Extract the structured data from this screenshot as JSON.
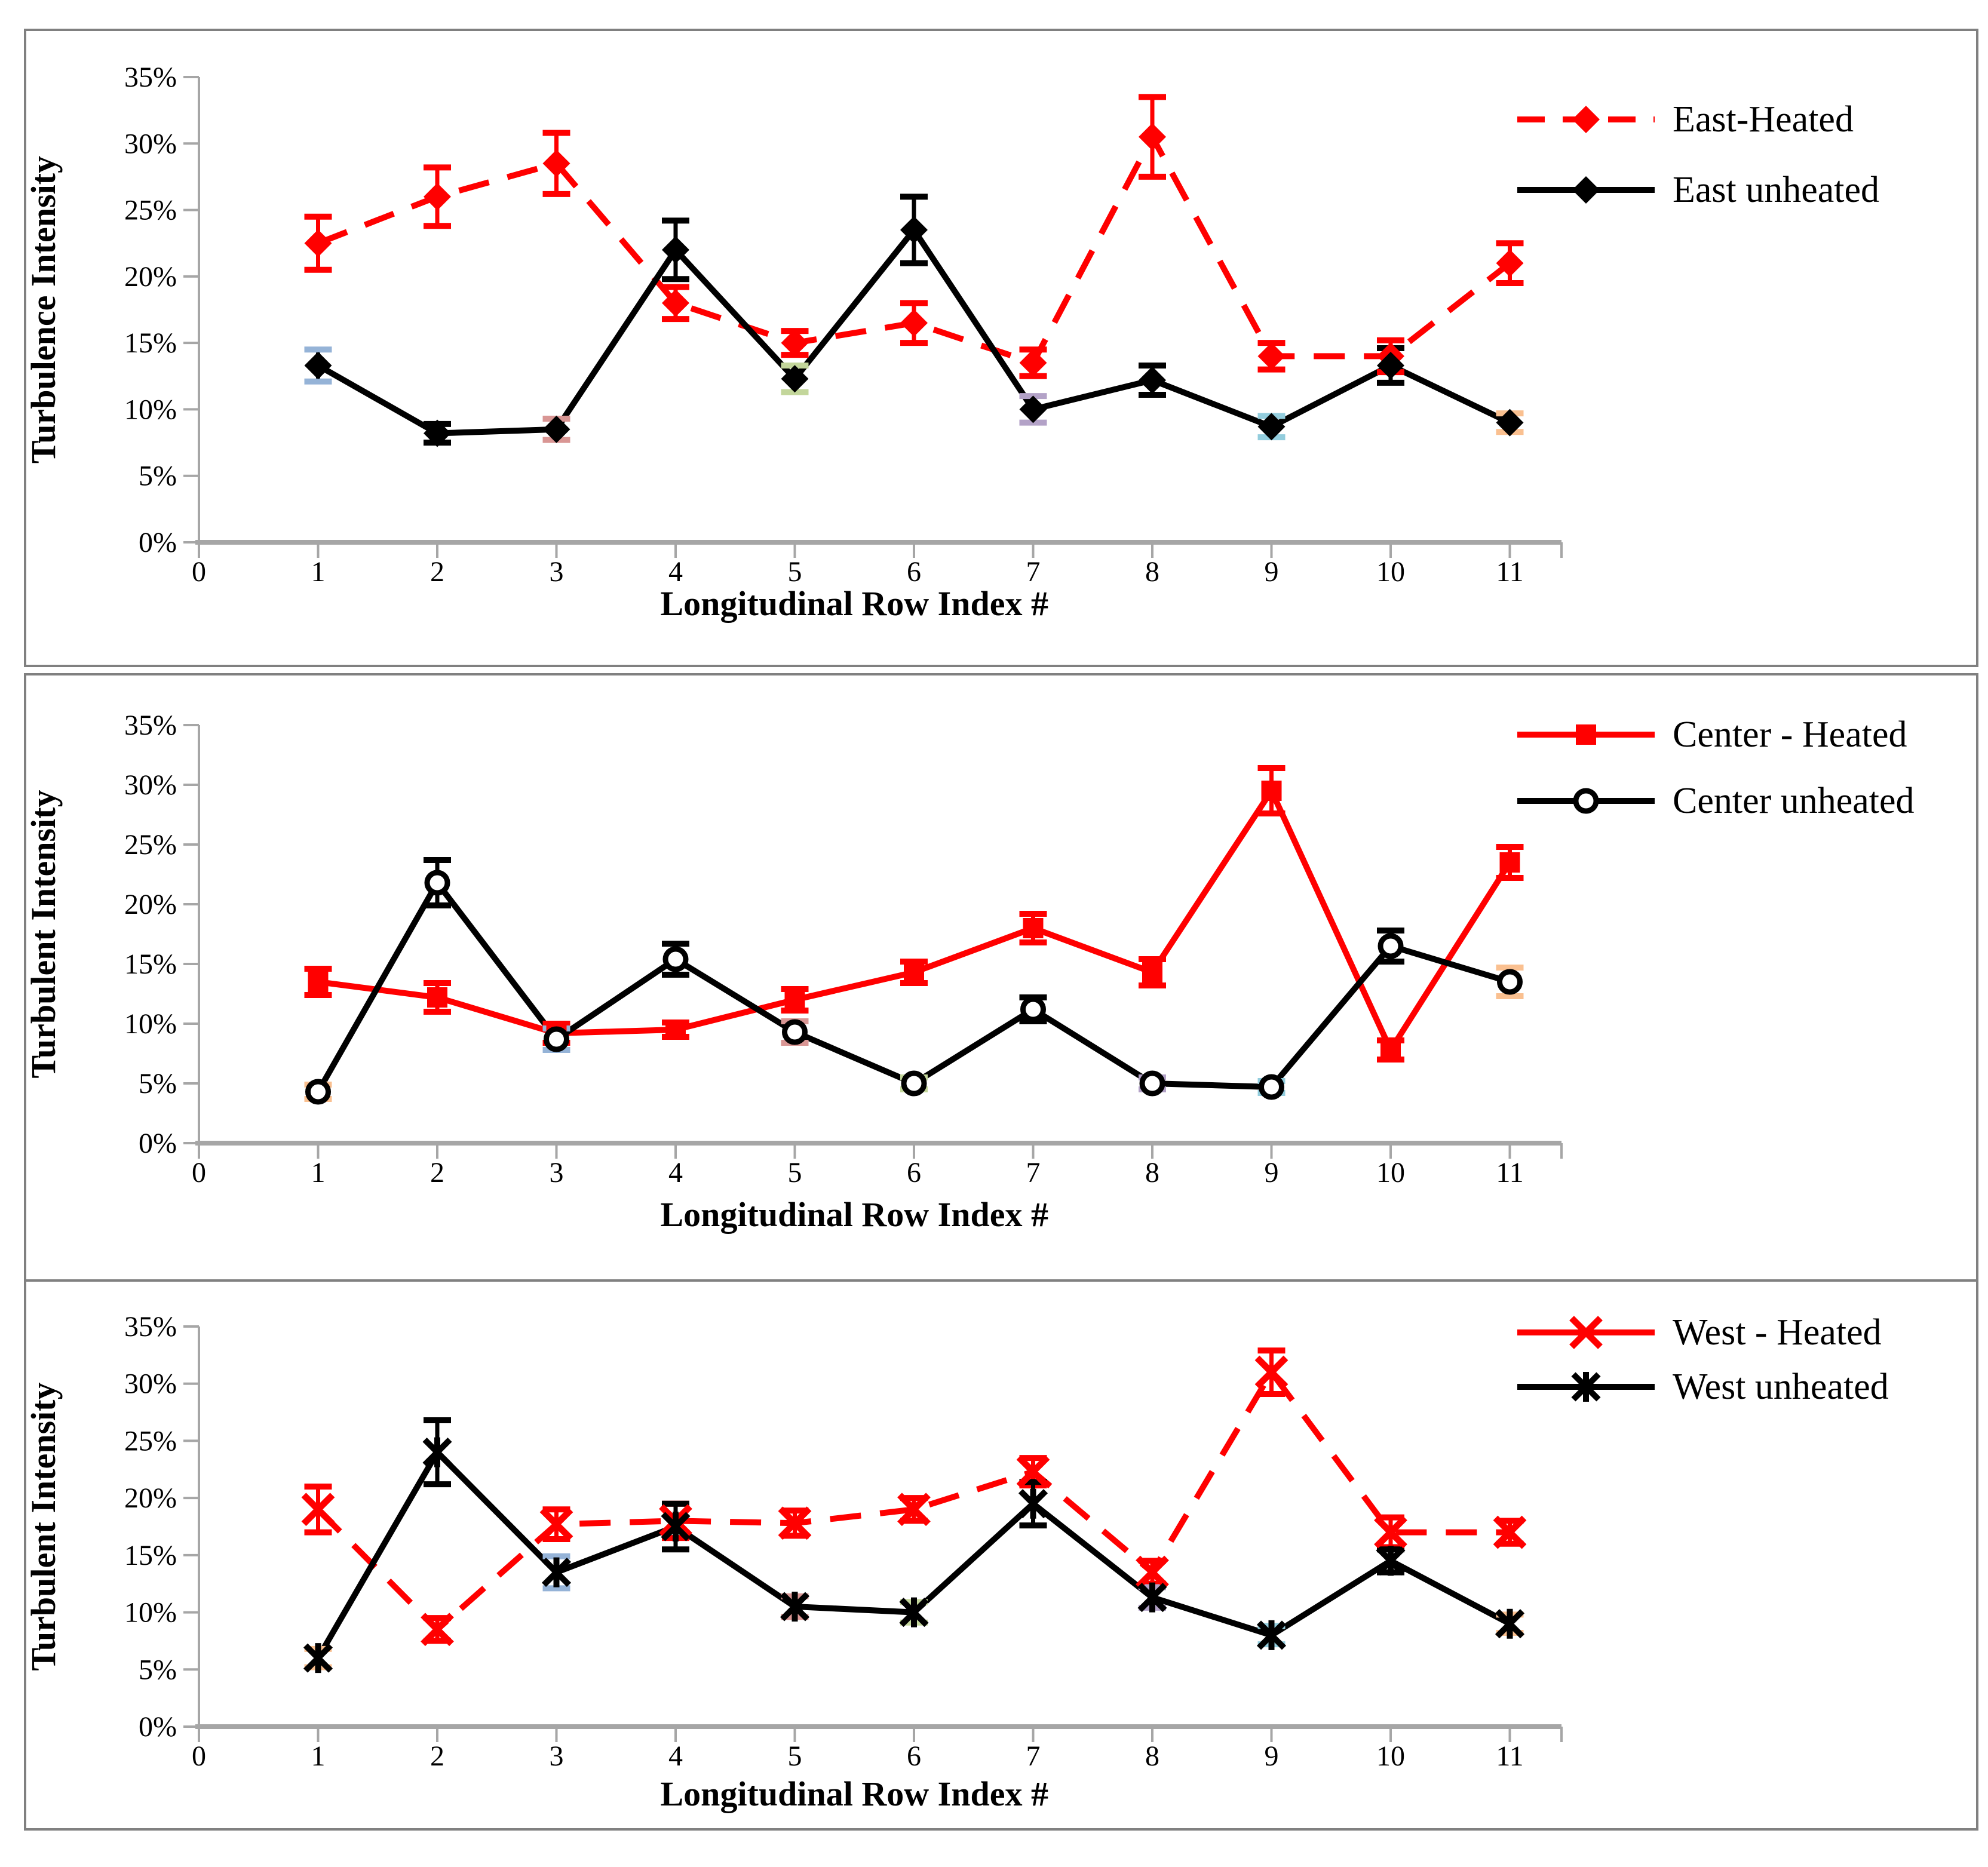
{
  "figure": {
    "description_xlabel": "Longitudinal Row Index #",
    "accent_red": "#ff0000",
    "accent_black": "#000000",
    "axis_color": "#a6a6a6",
    "border_color": "#808080"
  },
  "chart_data": [
    {
      "id": "east",
      "type": "line",
      "title": "",
      "xlabel": "Longitudinal Row Index #",
      "ylabel": "Turbulence Intensity",
      "x": [
        1,
        2,
        3,
        4,
        5,
        6,
        7,
        8,
        9,
        10,
        11
      ],
      "xticks": [
        "0",
        "1",
        "2",
        "3",
        "4",
        "5",
        "6",
        "7",
        "8",
        "9",
        "10",
        "11"
      ],
      "yticks": [
        "0%",
        "5%",
        "10%",
        "15%",
        "20%",
        "25%",
        "30%",
        "35%"
      ],
      "xlim": [
        0,
        11.5
      ],
      "ylim_percent": [
        0,
        35
      ],
      "grid": false,
      "legend_position": "right",
      "series": [
        {
          "name": "East-Heated",
          "color": "#ff0000",
          "line": "dashed",
          "legend_line": "dashed",
          "marker": "diamond",
          "values": [
            22.5,
            26,
            28.5,
            18,
            15,
            16.5,
            13.5,
            30.5,
            14,
            14,
            21
          ],
          "errors": [
            2,
            2.2,
            2.3,
            1.2,
            0.9,
            1.5,
            1,
            3,
            1,
            1.2,
            1.5
          ]
        },
        {
          "name": "East unheated",
          "color": "#000000",
          "line": "solid",
          "legend_line": "solid",
          "marker": "diamond",
          "values": [
            13.3,
            8.2,
            8.5,
            22,
            12.3,
            23.5,
            10,
            12.2,
            8.7,
            13.3,
            9
          ],
          "errors": [
            1.2,
            0.7,
            0.8,
            2.2,
            1,
            2.5,
            1,
            1.1,
            0.8,
            1.3,
            0.7
          ],
          "cap_colors": {
            "0": "#95b3d7",
            "2": "#d99694",
            "4": "#c3d69b",
            "6": "#b3a2c7",
            "8": "#93cddd",
            "10": "#fac090"
          }
        }
      ]
    },
    {
      "id": "center",
      "type": "line",
      "title": "",
      "xlabel": "Longitudinal Row Index #",
      "ylabel": "Turbulent Intensity",
      "x": [
        1,
        2,
        3,
        4,
        5,
        6,
        7,
        8,
        9,
        10,
        11
      ],
      "xticks": [
        "0",
        "1",
        "2",
        "3",
        "4",
        "5",
        "6",
        "7",
        "8",
        "9",
        "10",
        "11"
      ],
      "yticks": [
        "0%",
        "5%",
        "10%",
        "15%",
        "20%",
        "25%",
        "30%",
        "35%"
      ],
      "xlim": [
        0,
        11.5
      ],
      "ylim_percent": [
        0,
        35
      ],
      "grid": false,
      "legend_position": "right",
      "series": [
        {
          "name": "Center - Heated",
          "color": "#ff0000",
          "line": "solid",
          "legend_line": "solid",
          "marker": "square",
          "values": [
            13.5,
            12.2,
            9.2,
            9.5,
            12,
            14.3,
            18,
            14.3,
            29.5,
            7.8,
            23.5
          ],
          "errors": [
            1.1,
            1.2,
            0.8,
            0.6,
            0.9,
            0.9,
            1.2,
            1.1,
            1.9,
            0.8,
            1.3
          ]
        },
        {
          "name": "Center unheated",
          "color": "#000000",
          "line": "solid",
          "legend_line": "solid",
          "marker": "circle-open",
          "values": [
            4.3,
            21.8,
            8.7,
            15.4,
            9.3,
            5,
            11.2,
            5,
            4.7,
            16.5,
            13.5
          ],
          "errors": [
            0.6,
            1.9,
            0.9,
            1.3,
            0.9,
            0.5,
            1,
            0.5,
            0.5,
            1.3,
            1.2
          ],
          "cap_colors": {
            "0": "#fac090",
            "2": "#95b3d7",
            "4": "#d99694",
            "5": "#c3d69b",
            "7": "#b3a2c7",
            "8": "#93cddd",
            "10": "#fac090"
          }
        }
      ]
    },
    {
      "id": "west",
      "type": "line",
      "title": "",
      "xlabel": "Longitudinal Row Index #",
      "ylabel": "Turbulent Intensity",
      "x": [
        1,
        2,
        3,
        4,
        5,
        6,
        7,
        8,
        9,
        10,
        11
      ],
      "xticks": [
        "0",
        "1",
        "2",
        "3",
        "4",
        "5",
        "6",
        "7",
        "8",
        "9",
        "10",
        "11"
      ],
      "yticks": [
        "0%",
        "5%",
        "10%",
        "15%",
        "20%",
        "25%",
        "30%",
        "35%"
      ],
      "xlim": [
        0,
        11.5
      ],
      "ylim_percent": [
        0,
        35
      ],
      "grid": false,
      "legend_position": "right",
      "series": [
        {
          "name": "West - Heated",
          "color": "#ff0000",
          "line": "dashed",
          "legend_line": "solid",
          "marker": "x",
          "values": [
            19,
            8.5,
            17.7,
            18,
            17.8,
            19,
            22.3,
            13.5,
            31,
            17,
            17
          ],
          "errors": [
            2,
            1,
            1.3,
            1.5,
            1.1,
            1,
            1.2,
            1,
            1.9,
            1.3,
            1
          ]
        },
        {
          "name": "West unheated",
          "color": "#000000",
          "line": "solid",
          "legend_line": "solid",
          "marker": "star",
          "values": [
            6,
            24,
            13.5,
            17.5,
            10.5,
            10,
            19.5,
            11.3,
            8,
            14.5,
            9
          ],
          "errors": [
            0.8,
            2.8,
            1.4,
            2,
            0.9,
            0.9,
            1.9,
            0.9,
            0.8,
            1,
            0.8
          ],
          "cap_colors": {
            "0": "#fac090",
            "2": "#95b3d7",
            "4": "#d99694",
            "5": "#c3d69b",
            "7": "#b3a2c7",
            "8": "#93cddd",
            "10": "#fac090"
          }
        }
      ]
    }
  ]
}
